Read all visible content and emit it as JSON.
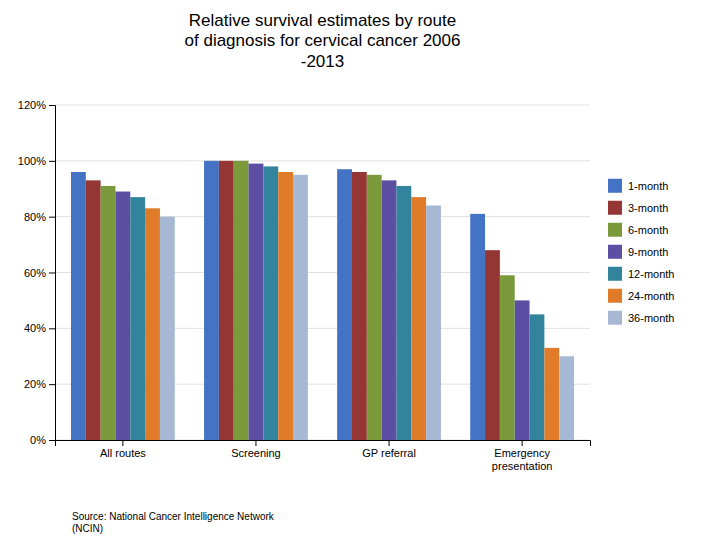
{
  "chart_data": {
    "type": "bar",
    "title": "Relative survival estimates by route\nof diagnosis for cervical cancer 2006\n-2013",
    "categories": [
      "All routes",
      "Screening",
      "GP referral",
      "Emergency\npresentation"
    ],
    "series": [
      {
        "name": "1-month",
        "color": "#4472C4",
        "values": [
          96,
          100,
          97,
          81
        ]
      },
      {
        "name": "3-month",
        "color": "#943634",
        "values": [
          93,
          100,
          96,
          68
        ]
      },
      {
        "name": "6-month",
        "color": "#7A9A3C",
        "values": [
          91,
          100,
          95,
          59
        ]
      },
      {
        "name": "9-month",
        "color": "#5B4EA3",
        "values": [
          89,
          99,
          93,
          50
        ]
      },
      {
        "name": "12-month",
        "color": "#31849B",
        "values": [
          87,
          98,
          91,
          45
        ]
      },
      {
        "name": "24-month",
        "color": "#E07B2A",
        "values": [
          83,
          96,
          87,
          33
        ]
      },
      {
        "name": "36-month",
        "color": "#A6B8D4",
        "values": [
          80,
          95,
          84,
          30
        ]
      }
    ],
    "ylim": [
      0,
      120
    ],
    "yticks": [
      {
        "value": 0,
        "label": "0%"
      },
      {
        "value": 20,
        "label": "20%"
      },
      {
        "value": 40,
        "label": "40%"
      },
      {
        "value": 60,
        "label": "60%"
      },
      {
        "value": 80,
        "label": "80%"
      },
      {
        "value": 100,
        "label": "100%"
      },
      {
        "value": 120,
        "label": "120%"
      }
    ],
    "grid": true,
    "legend": "right",
    "annotations": [
      "Source: National Cancer Intelligence Network\n(NCIN)"
    ]
  }
}
